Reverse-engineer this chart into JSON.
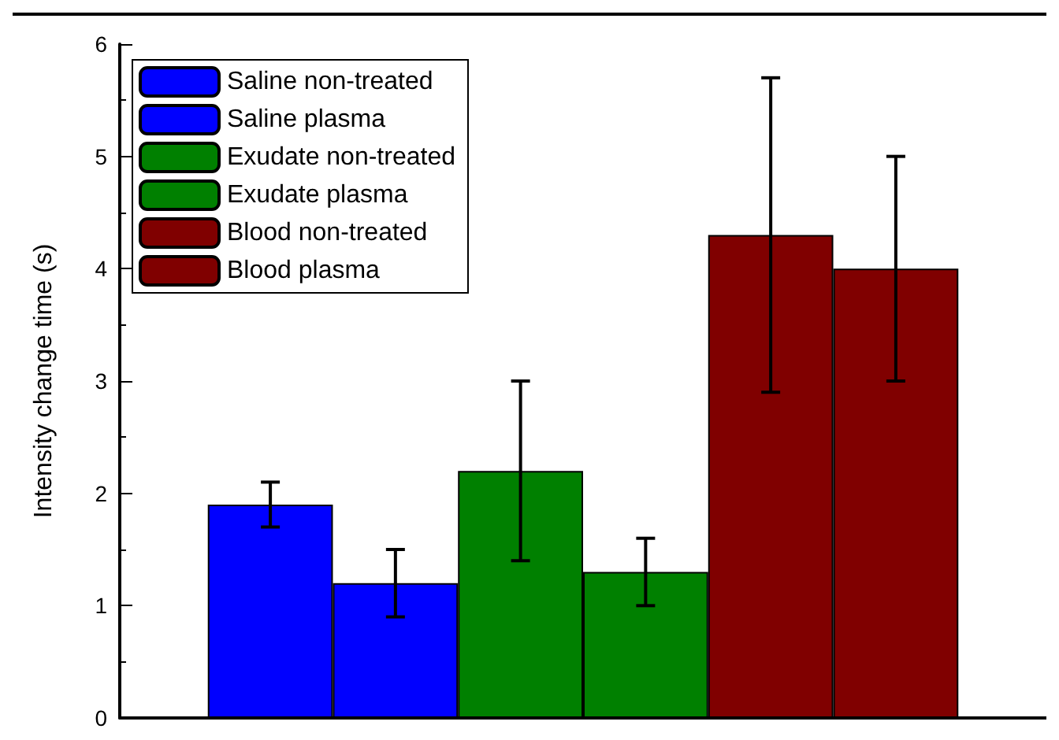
{
  "chart_data": {
    "type": "bar",
    "ylabel": "Intensity change time (s)",
    "categories": [
      null
    ],
    "ylim": [
      0,
      6
    ],
    "yticks": [
      0,
      1,
      2,
      3,
      4,
      5,
      6
    ],
    "legend": "top left",
    "grid": false,
    "series": [
      {
        "name": "Saline non-treated",
        "color": "#0000ff",
        "values": [
          1.9
        ],
        "errors": [
          0.2
        ]
      },
      {
        "name": "Saline plasma",
        "color": "#0000ff",
        "values": [
          1.2
        ],
        "errors": [
          0.3
        ]
      },
      {
        "name": "Exudate non-treated",
        "color": "#008000",
        "values": [
          2.2
        ],
        "errors": [
          0.8
        ]
      },
      {
        "name": "Exudate plasma",
        "color": "#008000",
        "values": [
          1.3
        ],
        "errors": [
          0.3
        ]
      },
      {
        "name": "Blood non-treated",
        "color": "#800000",
        "values": [
          4.3
        ],
        "errors": [
          1.4
        ]
      },
      {
        "name": "Blood plasma",
        "color": "#800000",
        "values": [
          4.0
        ],
        "errors": [
          1.0
        ]
      }
    ]
  }
}
